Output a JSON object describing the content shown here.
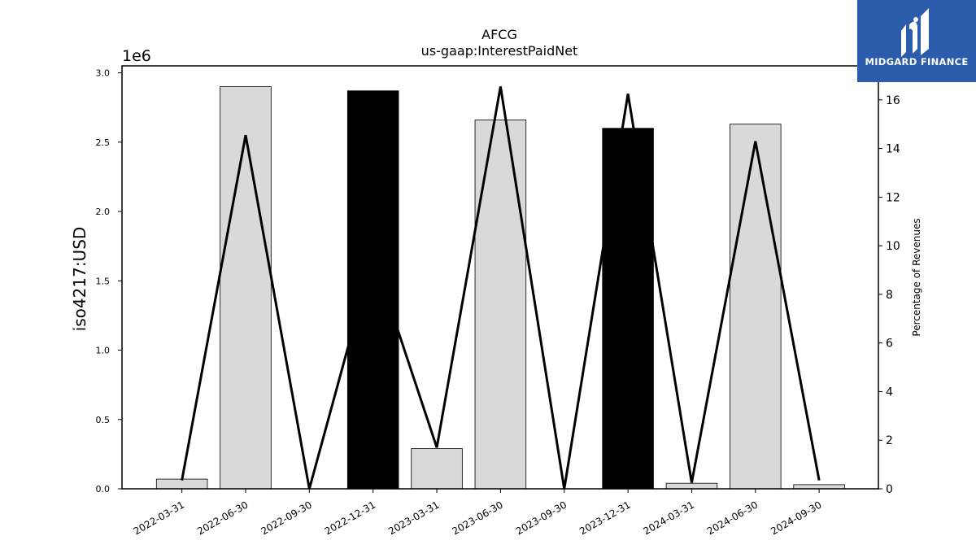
{
  "brand": {
    "name": "MIDGARD FINANCE",
    "logo_icon": "midgard-logo-icon",
    "background": "#2b5cab"
  },
  "chart_data": {
    "type": "bar",
    "title": "AFCG",
    "subtitle": "us-gaap:InterestPaidNet",
    "ylabel": "iso4217:USD",
    "y_offset_label": "1e6",
    "y2label": "Percentage of Revenues",
    "categories": [
      "2022-03-31",
      "2022-06-30",
      "2022-09-30",
      "2022-12-31",
      "2023-03-31",
      "2023-06-30",
      "2023-09-30",
      "2023-12-31",
      "2024-03-31",
      "2024-06-30",
      "2024-09-30"
    ],
    "values": [
      70000,
      2900000,
      0,
      2870000,
      290000,
      2660000,
      0,
      2600000,
      40000,
      2630000,
      30000
    ],
    "bar_colors": [
      "#d9d9d9",
      "#d9d9d9",
      "#d9d9d9",
      "#000000",
      "#d9d9d9",
      "#d9d9d9",
      "#d9d9d9",
      "#000000",
      "#d9d9d9",
      "#d9d9d9",
      "#d9d9d9"
    ],
    "ylim": [
      0,
      3050000
    ],
    "yticks": [
      0,
      500000,
      1000000,
      1500000,
      2000000,
      2500000,
      3000000
    ],
    "ytick_labels": [
      "0.0",
      "0.5",
      "1.0",
      "1.5",
      "2.0",
      "2.5",
      "3.0"
    ],
    "line_series": {
      "values": [
        0.35,
        14.55,
        0,
        9.6,
        1.7,
        16.55,
        0,
        16.25,
        0.25,
        14.3,
        0.35
      ],
      "color": "#000000"
    },
    "y2lim": [
      0,
      17.4
    ],
    "y2ticks": [
      0,
      2,
      4,
      6,
      8,
      10,
      12,
      14,
      16
    ],
    "grid": false
  }
}
